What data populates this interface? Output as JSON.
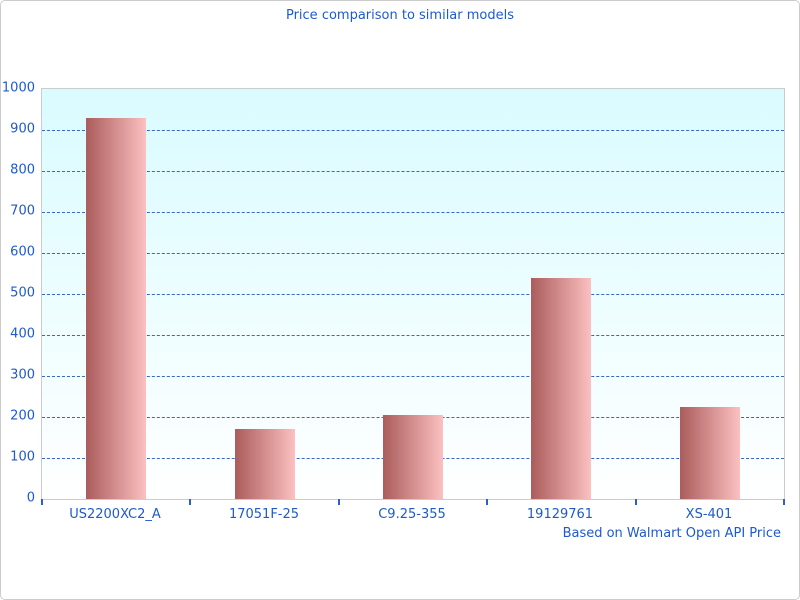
{
  "chart_data": {
    "type": "bar",
    "title": "Price comparison to similar models",
    "categories": [
      "US2200XC2_A",
      "17051F-25",
      "C9.25-355",
      "19129761",
      "XS-401"
    ],
    "values": [
      930,
      170,
      205,
      540,
      225
    ],
    "xlabel": "",
    "ylabel": "",
    "ylim": [
      0,
      1000
    ],
    "ytick_interval": 100,
    "grid": "horizontal-dashed",
    "legend": "none",
    "footnote": "Based on Walmart Open API Price",
    "colors": {
      "title_text": "#1e5acd",
      "axis_label_text": "#1e5acd",
      "gridline": "#3a66cc",
      "bar_gradient_left": "#ab5c5c",
      "bar_gradient_right": "#fcc0c0",
      "plot_bg_top": "#d9fbff",
      "plot_bg_bottom": "#ffffff",
      "plot_border": "#cccccc"
    }
  }
}
